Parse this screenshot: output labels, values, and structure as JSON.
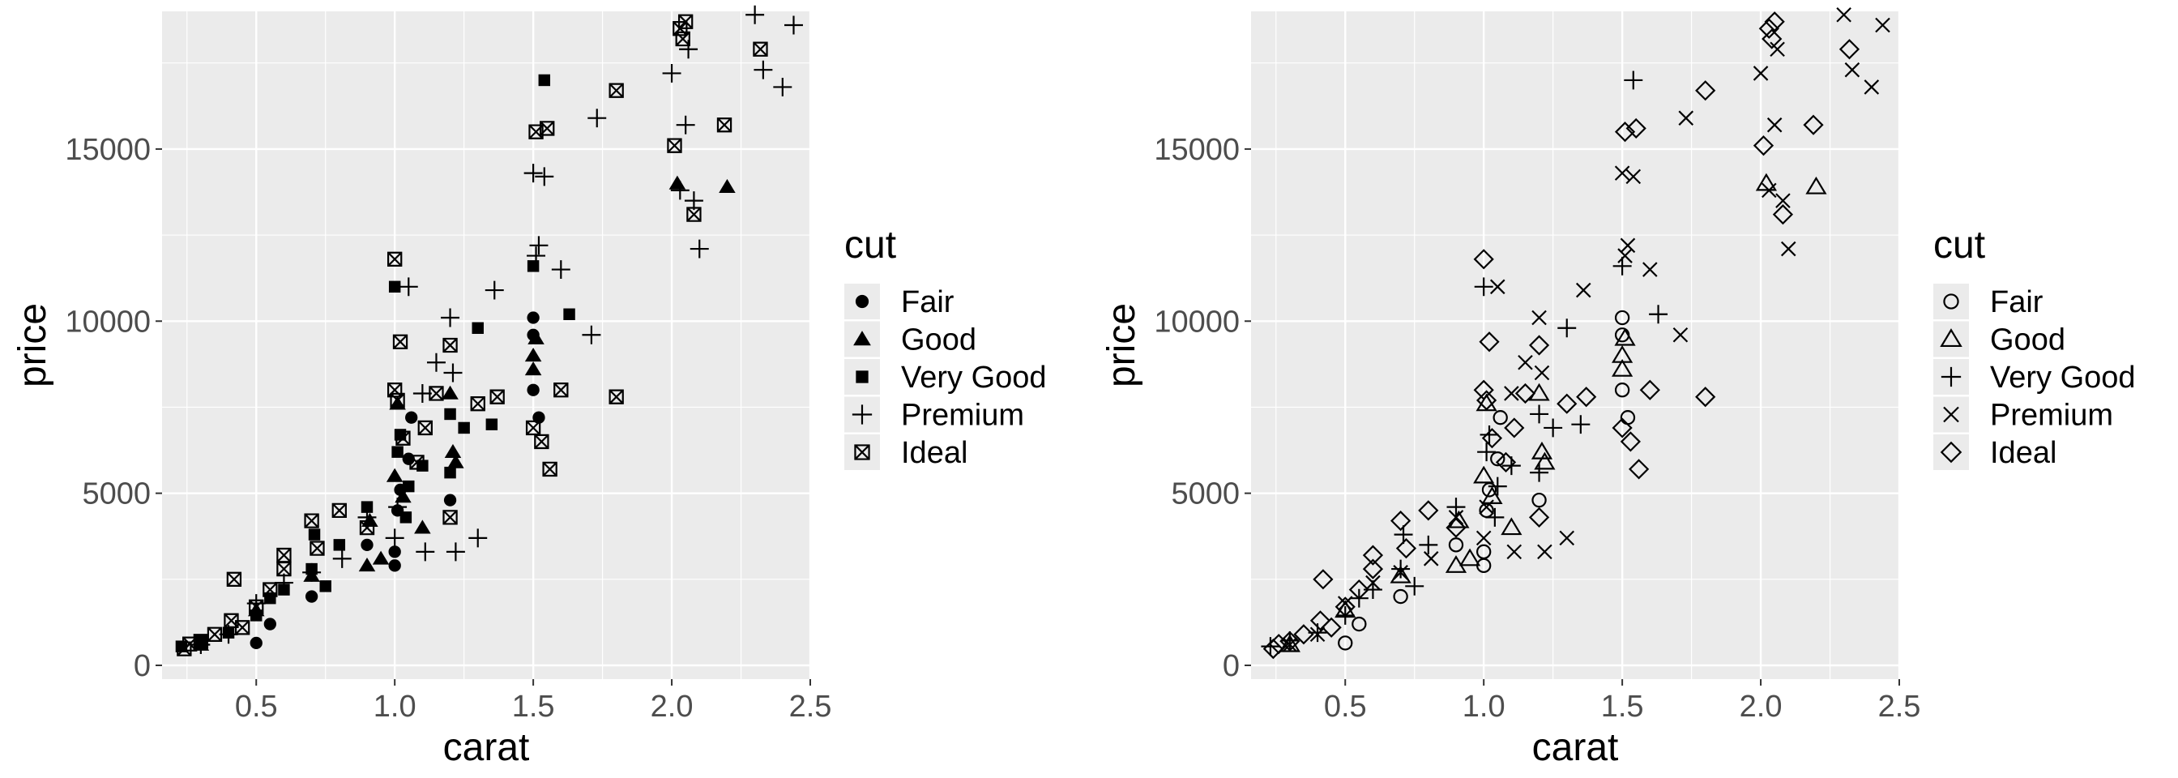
{
  "chart_data": [
    {
      "type": "scatter",
      "xlabel": "carat",
      "ylabel": "price",
      "xlim": [
        0.16,
        2.5
      ],
      "ylim": [
        -400,
        19000
      ],
      "x_ticks": [
        0.5,
        1.0,
        1.5,
        2.0,
        2.5
      ],
      "x_tick_labels": [
        "0.5",
        "1.0",
        "1.5",
        "2.0",
        "2.5"
      ],
      "y_ticks": [
        0,
        5000,
        10000,
        15000
      ],
      "y_tick_labels": [
        "0",
        "5000",
        "10000",
        "15000"
      ],
      "grid": true,
      "legend": {
        "title": "cut",
        "position": "right",
        "entries": [
          "Fair",
          "Good",
          "Very Good",
          "Premium",
          "Ideal"
        ],
        "symbols": [
          "filled-circle",
          "filled-triangle",
          "filled-square",
          "plus",
          "square-x"
        ]
      },
      "series": [
        {
          "name": "Fair",
          "symbol": "filled-circle",
          "points": [
            [
              0.5,
              650
            ],
            [
              0.55,
              1200
            ],
            [
              0.7,
              2000
            ],
            [
              0.9,
              3500
            ],
            [
              1.0,
              2900
            ],
            [
              1.0,
              3300
            ],
            [
              1.01,
              4500
            ],
            [
              1.02,
              5100
            ],
            [
              1.05,
              6000
            ],
            [
              1.2,
              4800
            ],
            [
              1.5,
              10100
            ],
            [
              1.5,
              8000
            ],
            [
              1.52,
              7200
            ],
            [
              1.5,
              9600
            ],
            [
              1.06,
              7200
            ]
          ]
        },
        {
          "name": "Good",
          "symbols": "filled-triangle",
          "points": [
            [
              0.3,
              600
            ],
            [
              0.5,
              1600
            ],
            [
              0.7,
              2600
            ],
            [
              0.9,
              2900
            ],
            [
              0.91,
              4200
            ],
            [
              1.0,
              5500
            ],
            [
              1.01,
              7600
            ],
            [
              1.03,
              4900
            ],
            [
              1.1,
              4000
            ],
            [
              1.2,
              7900
            ],
            [
              1.21,
              6200
            ],
            [
              1.22,
              5900
            ],
            [
              1.5,
              9000
            ],
            [
              1.5,
              8600
            ],
            [
              1.51,
              9500
            ],
            [
              2.02,
              14000
            ],
            [
              2.2,
              13900
            ],
            [
              0.95,
              3100
            ]
          ]
        },
        {
          "name": "Very Good",
          "symbol": "filled-square",
          "points": [
            [
              0.23,
              550
            ],
            [
              0.3,
              720
            ],
            [
              0.4,
              950
            ],
            [
              0.5,
              1450
            ],
            [
              0.55,
              1950
            ],
            [
              0.6,
              2200
            ],
            [
              0.7,
              2800
            ],
            [
              0.71,
              3800
            ],
            [
              0.8,
              3500
            ],
            [
              0.9,
              4600
            ],
            [
              1.0,
              11000
            ],
            [
              1.01,
              6200
            ],
            [
              1.02,
              6700
            ],
            [
              1.05,
              5200
            ],
            [
              1.1,
              5800
            ],
            [
              1.2,
              7300
            ],
            [
              1.2,
              5600
            ],
            [
              1.25,
              6900
            ],
            [
              1.3,
              9800
            ],
            [
              1.35,
              7000
            ],
            [
              1.5,
              11600
            ],
            [
              1.54,
              17000
            ],
            [
              1.63,
              10200
            ],
            [
              0.75,
              2300
            ],
            [
              1.04,
              4300
            ]
          ]
        },
        {
          "name": "Premium",
          "symbol": "plus",
          "points": [
            [
              0.3,
              600
            ],
            [
              0.4,
              900
            ],
            [
              0.5,
              1800
            ],
            [
              0.6,
              2400
            ],
            [
              0.7,
              2700
            ],
            [
              0.81,
              3100
            ],
            [
              0.9,
              4300
            ],
            [
              1.0,
              3700
            ],
            [
              1.01,
              4600
            ],
            [
              1.05,
              11000
            ],
            [
              1.1,
              7900
            ],
            [
              1.11,
              3300
            ],
            [
              1.15,
              8800
            ],
            [
              1.2,
              10100
            ],
            [
              1.21,
              8500
            ],
            [
              1.22,
              3300
            ],
            [
              1.3,
              3700
            ],
            [
              1.36,
              10900
            ],
            [
              1.5,
              14300
            ],
            [
              1.52,
              12200
            ],
            [
              1.54,
              14200
            ],
            [
              1.51,
              11900
            ],
            [
              1.6,
              11500
            ],
            [
              1.71,
              9600
            ],
            [
              1.73,
              15900
            ],
            [
              2.0,
              17200
            ],
            [
              2.03,
              13800
            ],
            [
              2.05,
              15700
            ],
            [
              2.1,
              12100
            ],
            [
              2.3,
              18900
            ],
            [
              2.33,
              17300
            ],
            [
              2.4,
              16800
            ],
            [
              2.44,
              18600
            ],
            [
              2.08,
              13500
            ],
            [
              2.06,
              17900
            ]
          ]
        },
        {
          "name": "Ideal",
          "symbol": "square-x",
          "points": [
            [
              0.24,
              480
            ],
            [
              0.3,
              700
            ],
            [
              0.35,
              900
            ],
            [
              0.41,
              1300
            ],
            [
              0.42,
              2500
            ],
            [
              0.5,
              1700
            ],
            [
              0.55,
              2200
            ],
            [
              0.6,
              2800
            ],
            [
              0.6,
              3200
            ],
            [
              0.7,
              4200
            ],
            [
              0.72,
              3400
            ],
            [
              0.8,
              4500
            ],
            [
              0.9,
              4000
            ],
            [
              1.0,
              11800
            ],
            [
              1.0,
              8000
            ],
            [
              1.01,
              7700
            ],
            [
              1.02,
              9400
            ],
            [
              1.03,
              6600
            ],
            [
              1.08,
              5900
            ],
            [
              1.11,
              6900
            ],
            [
              1.15,
              7900
            ],
            [
              1.2,
              9300
            ],
            [
              1.2,
              4300
            ],
            [
              1.3,
              7600
            ],
            [
              1.37,
              7800
            ],
            [
              1.5,
              6900
            ],
            [
              1.51,
              15500
            ],
            [
              1.53,
              6500
            ],
            [
              1.55,
              15600
            ],
            [
              1.56,
              5700
            ],
            [
              1.6,
              8000
            ],
            [
              1.8,
              7800
            ],
            [
              1.8,
              16700
            ],
            [
              2.01,
              15100
            ],
            [
              2.03,
              18500
            ],
            [
              2.04,
              18200
            ],
            [
              2.08,
              13100
            ],
            [
              2.05,
              18700
            ],
            [
              2.19,
              15700
            ],
            [
              2.32,
              17900
            ],
            [
              0.26,
              620
            ],
            [
              0.45,
              1100
            ]
          ]
        }
      ]
    },
    {
      "type": "scatter",
      "xlabel": "carat",
      "ylabel": "price",
      "xlim": [
        0.16,
        2.5
      ],
      "ylim": [
        -400,
        19000
      ],
      "x_ticks": [
        0.5,
        1.0,
        1.5,
        2.0,
        2.5
      ],
      "x_tick_labels": [
        "0.5",
        "1.0",
        "1.5",
        "2.0",
        "2.5"
      ],
      "y_ticks": [
        0,
        5000,
        10000,
        15000
      ],
      "y_tick_labels": [
        "0",
        "5000",
        "10000",
        "15000"
      ],
      "grid": true,
      "legend": {
        "title": "cut",
        "position": "right",
        "entries": [
          "Fair",
          "Good",
          "Very Good",
          "Premium",
          "Ideal"
        ],
        "symbols": [
          "open-circle",
          "open-triangle",
          "plus",
          "x",
          "diamond"
        ]
      },
      "same_data_as_chart": 0
    }
  ],
  "colors": {
    "panel_bg": "#ebebeb",
    "grid": "#ffffff",
    "axis_text": "#4d4d4d",
    "title_text": "#000000",
    "point": "#000000"
  }
}
